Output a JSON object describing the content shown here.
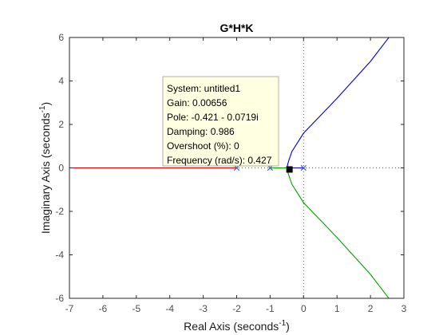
{
  "chart_data": {
    "type": "line",
    "title": "G*H*K",
    "xlabel": {
      "text": "Real Axis (seconds",
      "sup": "-1",
      "close": ")"
    },
    "ylabel": {
      "text": "Imaginary Axis (seconds",
      "sup": "-1",
      "close": ")"
    },
    "xlim": [
      -7,
      3
    ],
    "ylim": [
      -6,
      6
    ],
    "xticks": [
      -7,
      -6,
      -5,
      -4,
      -3,
      -2,
      -1,
      0,
      1,
      2,
      3
    ],
    "yticks": [
      -6,
      -4,
      -2,
      0,
      2,
      4,
      6
    ],
    "grid": false,
    "reference_lines": {
      "x": 0,
      "y": 0,
      "style": "dotted"
    },
    "series": [
      {
        "color": "#cc0000",
        "points": [
          [
            -7,
            0
          ],
          [
            -2,
            0
          ]
        ]
      },
      {
        "color": "#00a000",
        "points": [
          [
            -1,
            0
          ],
          [
            -0.5,
            0
          ],
          [
            -0.45,
            -0.3
          ],
          [
            -0.35,
            -0.75
          ],
          [
            0.0,
            -1.6
          ],
          [
            0.5,
            -2.4
          ],
          [
            1.0,
            -3.2
          ],
          [
            1.5,
            -4.05
          ],
          [
            2.0,
            -4.9
          ],
          [
            2.5,
            -5.9
          ],
          [
            2.55,
            -6.0
          ]
        ]
      },
      {
        "color": "#0000cc",
        "points": [
          [
            0,
            0
          ],
          [
            -0.5,
            0
          ],
          [
            -0.45,
            0.3
          ],
          [
            -0.35,
            0.75
          ],
          [
            0.0,
            1.6
          ],
          [
            0.5,
            2.4
          ],
          [
            1.0,
            3.2
          ],
          [
            1.5,
            4.05
          ],
          [
            2.0,
            4.9
          ],
          [
            2.5,
            5.9
          ],
          [
            2.55,
            6.0
          ]
        ]
      }
    ],
    "poles": [
      {
        "x": -2,
        "y": 0
      },
      {
        "x": -1,
        "y": 0
      },
      {
        "x": 0,
        "y": 0
      }
    ],
    "selected_point": {
      "x": -0.421,
      "y": -0.0719
    },
    "datatip": {
      "lines": [
        "System: untitled1",
        "Gain: 0.00656",
        "Pole: -0.421 - 0.0719i",
        "Damping: 0.986",
        "Overshoot (%): 0",
        "Frequency (rad/s): 0.427"
      ],
      "background": "#ffffe1",
      "border": "#b0b0a0"
    },
    "colors": {
      "pole_marker": "#3a5fcd",
      "axes_box": "#262626"
    }
  }
}
